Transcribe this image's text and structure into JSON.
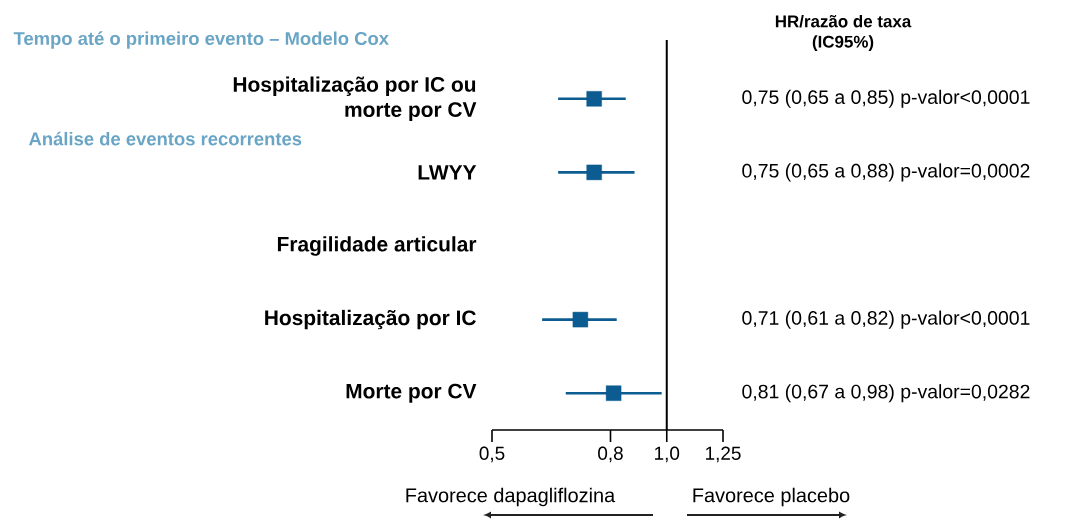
{
  "chart_data": {
    "type": "scatter",
    "orientation": "horizontal",
    "categories": [
      "Hospitalização por IC ou morte por CV",
      "LWYY",
      "Fragilidade articular",
      "Hospitalização por IC",
      "Morte por CV"
    ],
    "values": [
      0.75,
      0.75,
      null,
      0.71,
      0.81
    ],
    "errors": [
      [
        0.65,
        0.85
      ],
      [
        0.65,
        0.88
      ],
      null,
      [
        0.61,
        0.82
      ],
      [
        0.67,
        0.98
      ]
    ],
    "value_labels": [
      "0,75 (0,65 a 0,85) p-valor<0,0001",
      "0,75 (0,65 a 0,88) p-valor=0,0002",
      null,
      "0,71 (0,61 a 0,82) p-valor<0,0001",
      "0,81 (0,67 a 0,98) p-valor=0,0282"
    ],
    "color": "#0d5c91",
    "marker": "square",
    "log": "x",
    "xlim": [
      0.5,
      1.25
    ],
    "xticks": [
      {
        "value": 0.5,
        "label": "0,5"
      },
      {
        "value": 0.8,
        "label": "0,8"
      },
      {
        "value": 1,
        "label": "1,0"
      },
      {
        "value": 1.25,
        "label": "1,25"
      }
    ],
    "ref_lines": [
      {
        "axis": "x",
        "value": 1,
        "color": "#000000"
      }
    ],
    "annotations": [
      "Tempo até o primeiro evento – Modelo Cox",
      "Análise de eventos recorrentes",
      "HR/razão de taxa (IC95%)",
      "Favorece dapagliflozina",
      "Favorece placebo"
    ]
  }
}
